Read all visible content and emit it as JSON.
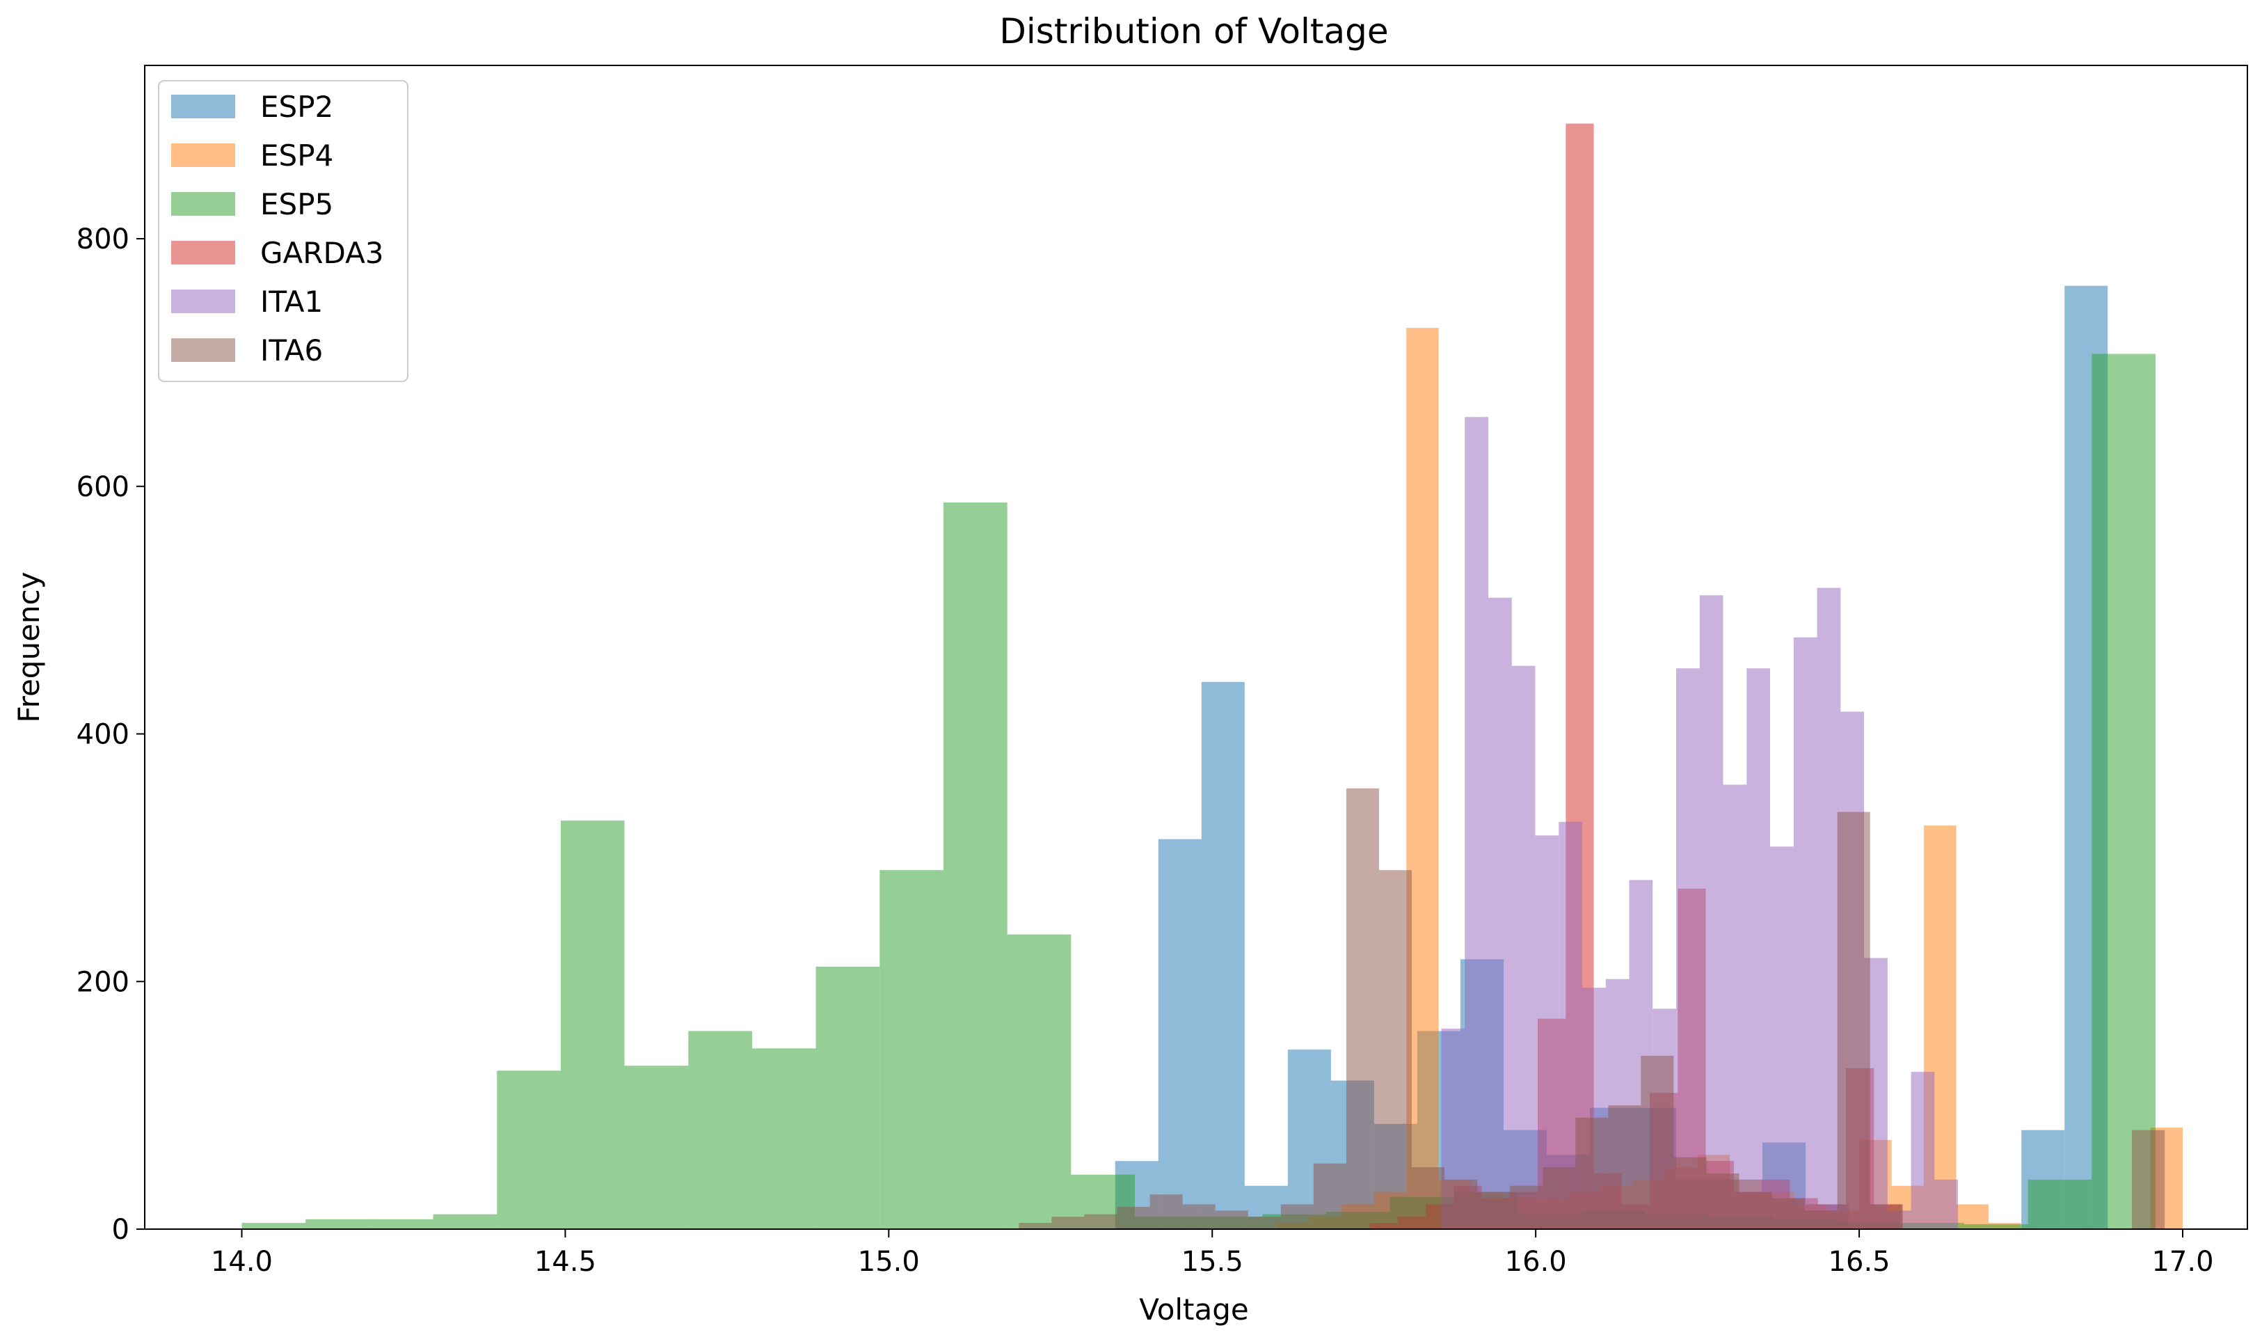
{
  "chart_data": {
    "type": "histogram",
    "title": "Distribution of Voltage",
    "xlabel": "Voltage",
    "ylabel": "Frequency",
    "xlim": [
      13.85,
      17.1
    ],
    "ylim": [
      0,
      940
    ],
    "xticks": [
      14.0,
      14.5,
      15.0,
      15.5,
      16.0,
      16.5,
      17.0
    ],
    "xtick_labels": [
      "14.0",
      "14.5",
      "15.0",
      "15.5",
      "16.0",
      "16.5",
      "17.0"
    ],
    "yticks": [
      0,
      200,
      400,
      600,
      800
    ],
    "ytick_labels": [
      "0",
      "200",
      "400",
      "600",
      "800"
    ],
    "legend_position": "upper-left",
    "opacity": 0.5,
    "series": [
      {
        "name": "ESP2",
        "color": "#1f77b4",
        "bin_start": 15.35,
        "bin_width": 0.0667,
        "values": [
          55,
          315,
          442,
          35,
          145,
          120,
          85,
          160,
          218,
          80,
          60,
          98,
          98,
          40,
          40,
          70,
          20,
          0,
          0,
          0,
          0,
          80,
          762
        ]
      },
      {
        "name": "ESP4",
        "color": "#ff7f0e",
        "bin_start": 15.5,
        "bin_width": 0.05,
        "values": [
          0,
          0,
          5,
          10,
          20,
          30,
          728,
          40,
          30,
          25,
          25,
          30,
          35,
          40,
          50,
          60,
          40,
          30,
          20,
          15,
          72,
          35,
          326,
          20,
          5,
          0,
          0,
          0,
          0,
          82
        ]
      },
      {
        "name": "ESP5",
        "color": "#2ca02c",
        "bin_start": 14.0,
        "bin_width": 0.0986,
        "values": [
          5,
          8,
          8,
          12,
          128,
          330,
          132,
          160,
          146,
          212,
          290,
          587,
          238,
          44,
          10,
          10,
          12,
          14,
          26,
          30,
          12,
          15,
          12,
          10,
          8,
          6,
          5,
          4,
          40,
          707
        ]
      },
      {
        "name": "GARDA3",
        "color": "#d62728",
        "bin_start": 15.7,
        "bin_width": 0.0433,
        "values": [
          0,
          5,
          10,
          20,
          35,
          25,
          30,
          170,
          893,
          45,
          20,
          110,
          275,
          55,
          30,
          40,
          25,
          20,
          130,
          20
        ]
      },
      {
        "name": "ITA1",
        "color": "#9467bd",
        "bin_start": 15.6,
        "bin_width": 0.0363,
        "values": [
          0,
          0,
          0,
          0,
          0,
          0,
          0,
          162,
          656,
          510,
          455,
          318,
          329,
          195,
          202,
          282,
          178,
          453,
          512,
          359,
          453,
          309,
          478,
          518,
          418,
          219,
          15,
          127,
          40
        ]
      },
      {
        "name": "ITA6",
        "color": "#8c564b",
        "bin_start": 15.1,
        "bin_width": 0.0506,
        "values": [
          0,
          0,
          5,
          10,
          12,
          18,
          28,
          20,
          15,
          10,
          20,
          53,
          356,
          290,
          50,
          40,
          30,
          35,
          50,
          90,
          100,
          140,
          58,
          45,
          30,
          25,
          15,
          337,
          20,
          0,
          0,
          0,
          0,
          0,
          0,
          0,
          80
        ]
      }
    ]
  }
}
